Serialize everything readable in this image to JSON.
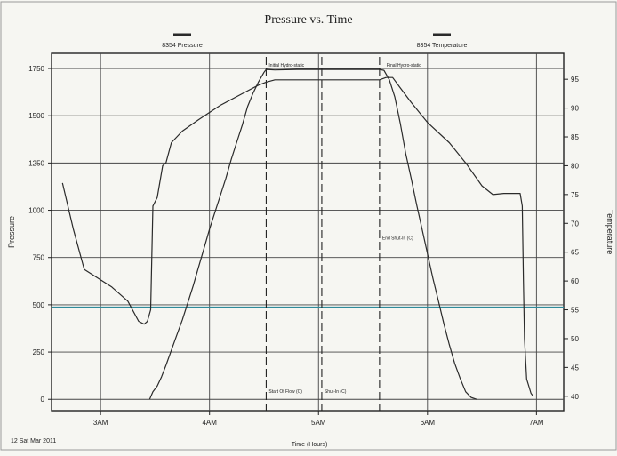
{
  "chart_data": {
    "type": "line",
    "title": "Pressure vs. Time",
    "xlabel": "Time (Hours)",
    "ylabel": "Pressure",
    "y2label": "Temperature",
    "date_label": "12 Sat Mar 2011",
    "xlim": [
      2.55,
      7.25
    ],
    "ylim": [
      -60,
      1830
    ],
    "y2lim": [
      37.5,
      99.5
    ],
    "x_tick_labels": [
      "3AM",
      "4AM",
      "5AM",
      "6AM",
      "7AM"
    ],
    "x_tick_values": [
      3,
      4,
      5,
      6,
      7
    ],
    "y_tick_labels": [
      "0",
      "250",
      "500",
      "750",
      "1000",
      "1250",
      "1500",
      "1750"
    ],
    "y_tick_values": [
      0,
      250,
      500,
      750,
      1000,
      1250,
      1500,
      1750
    ],
    "y2_tick_labels": [
      "40",
      "45",
      "50",
      "55",
      "60",
      "65",
      "70",
      "75",
      "80",
      "85",
      "90",
      "95"
    ],
    "y2_tick_values": [
      40,
      45,
      50,
      55,
      60,
      65,
      70,
      75,
      80,
      85,
      90,
      95
    ],
    "grid": true,
    "legend_position": "top",
    "series": [
      {
        "name": "8354 Pressure",
        "axis": "left",
        "color": "#2a2a2a",
        "points": [
          [
            3.45,
            0
          ],
          [
            3.48,
            40
          ],
          [
            3.52,
            70
          ],
          [
            3.56,
            120
          ],
          [
            3.6,
            180
          ],
          [
            3.65,
            260
          ],
          [
            3.7,
            340
          ],
          [
            3.75,
            420
          ],
          [
            3.8,
            510
          ],
          [
            3.85,
            600
          ],
          [
            3.9,
            700
          ],
          [
            3.95,
            800
          ],
          [
            4.0,
            900
          ],
          [
            4.05,
            990
          ],
          [
            4.1,
            1080
          ],
          [
            4.15,
            1170
          ],
          [
            4.2,
            1270
          ],
          [
            4.25,
            1360
          ],
          [
            4.3,
            1450
          ],
          [
            4.35,
            1550
          ],
          [
            4.4,
            1620
          ],
          [
            4.45,
            1680
          ],
          [
            4.5,
            1730
          ],
          [
            4.52,
            1745
          ],
          [
            4.6,
            1742
          ],
          [
            4.8,
            1745
          ],
          [
            5.0,
            1745
          ],
          [
            5.2,
            1745
          ],
          [
            5.4,
            1745
          ],
          [
            5.56,
            1745
          ],
          [
            5.6,
            1740
          ],
          [
            5.65,
            1690
          ],
          [
            5.7,
            1600
          ],
          [
            5.75,
            1460
          ],
          [
            5.8,
            1300
          ],
          [
            5.85,
            1170
          ],
          [
            5.9,
            1030
          ],
          [
            5.95,
            900
          ],
          [
            6.0,
            770
          ],
          [
            6.05,
            640
          ],
          [
            6.1,
            520
          ],
          [
            6.15,
            400
          ],
          [
            6.2,
            290
          ],
          [
            6.25,
            190
          ],
          [
            6.3,
            110
          ],
          [
            6.35,
            40
          ],
          [
            6.4,
            10
          ],
          [
            6.45,
            0
          ]
        ]
      },
      {
        "name": "8354 Temperature",
        "axis": "right",
        "color": "#2a2a2a",
        "points": [
          [
            2.65,
            77
          ],
          [
            2.75,
            69
          ],
          [
            2.85,
            62
          ],
          [
            2.95,
            60.8
          ],
          [
            3.1,
            59
          ],
          [
            3.25,
            56.5
          ],
          [
            3.35,
            53
          ],
          [
            3.4,
            52.5
          ],
          [
            3.43,
            53
          ],
          [
            3.46,
            55
          ],
          [
            3.48,
            73
          ],
          [
            3.52,
            74.5
          ],
          [
            3.57,
            80
          ],
          [
            3.6,
            80.5
          ],
          [
            3.65,
            84
          ],
          [
            3.75,
            86
          ],
          [
            3.9,
            88
          ],
          [
            4.1,
            90.5
          ],
          [
            4.3,
            92.5
          ],
          [
            4.45,
            94
          ],
          [
            4.52,
            94.5
          ],
          [
            4.6,
            94.9
          ],
          [
            4.8,
            94.9
          ],
          [
            5.0,
            94.9
          ],
          [
            5.2,
            94.9
          ],
          [
            5.4,
            94.9
          ],
          [
            5.56,
            94.9
          ],
          [
            5.62,
            95.3
          ],
          [
            5.68,
            95.3
          ],
          [
            5.75,
            93.5
          ],
          [
            5.85,
            91
          ],
          [
            6.0,
            87.5
          ],
          [
            6.2,
            84
          ],
          [
            6.35,
            80.5
          ],
          [
            6.5,
            76.5
          ],
          [
            6.6,
            75
          ],
          [
            6.7,
            75.2
          ],
          [
            6.85,
            75.2
          ],
          [
            6.87,
            73
          ],
          [
            6.88,
            60
          ],
          [
            6.89,
            50
          ],
          [
            6.91,
            43
          ],
          [
            6.95,
            40.5
          ],
          [
            6.97,
            40
          ]
        ]
      }
    ],
    "annotations": [
      {
        "text": "Initial Hydro-static",
        "x": 4.52,
        "y": 1745
      },
      {
        "text": "Final Hydro-static",
        "x": 5.6,
        "y": 1745
      },
      {
        "text": "End Shut-In (C)",
        "x": 5.56,
        "y": 830
      },
      {
        "text": "Start Of Flow (C)",
        "x": 4.52,
        "y": 20
      },
      {
        "text": "Shut-In (C)",
        "x": 5.03,
        "y": 20
      }
    ],
    "event_lines_x": [
      4.52,
      5.03,
      5.56
    ],
    "reference_line": {
      "y": 488,
      "color": "#2f8a9a"
    }
  }
}
